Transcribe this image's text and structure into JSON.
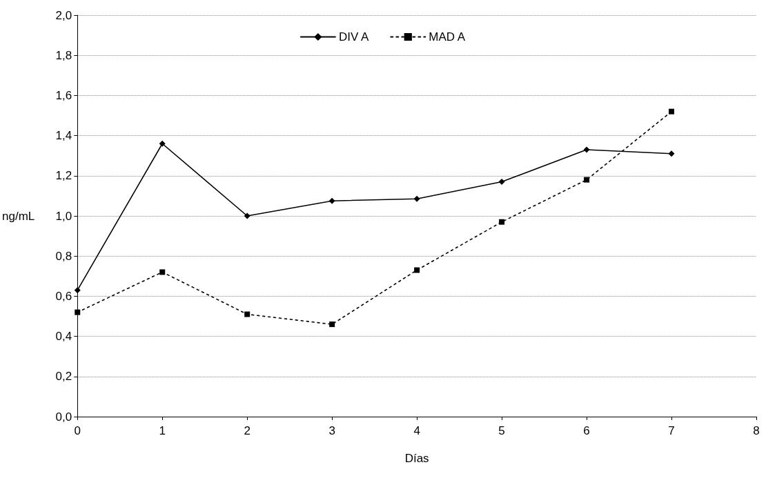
{
  "chart_data": {
    "type": "line",
    "xlabel": "Días",
    "ylabel": "ng/mL",
    "x": [
      0,
      1,
      2,
      3,
      4,
      5,
      6,
      7
    ],
    "series": [
      {
        "name": "DIV A",
        "color": "#000000",
        "marker": "diamond",
        "line_style": "solid",
        "values": [
          0.63,
          1.36,
          1.0,
          1.075,
          1.085,
          1.17,
          1.33,
          1.31
        ]
      },
      {
        "name": "MAD A",
        "color": "#000000",
        "marker": "square",
        "line_style": "dotted",
        "values": [
          0.52,
          0.72,
          0.51,
          0.46,
          0.73,
          0.97,
          1.18,
          1.52
        ]
      }
    ],
    "xlim": [
      0,
      8
    ],
    "xticks": [
      0,
      1,
      2,
      3,
      4,
      5,
      6,
      7,
      8
    ],
    "ylim": [
      0,
      2
    ],
    "yticks": [
      {
        "value": 0,
        "label": "0,0"
      },
      {
        "value": 0.2,
        "label": "0,2"
      },
      {
        "value": 0.4,
        "label": "0,4"
      },
      {
        "value": 0.6,
        "label": "0,6"
      },
      {
        "value": 0.8,
        "label": "0,8"
      },
      {
        "value": 1,
        "label": "1,0"
      },
      {
        "value": 1.2,
        "label": "1,2"
      },
      {
        "value": 1.4,
        "label": "1,4"
      },
      {
        "value": 1.6,
        "label": "1,6"
      },
      {
        "value": 1.8,
        "label": "1,8"
      },
      {
        "value": 2,
        "label": "2,0"
      }
    ],
    "grid": "y",
    "legend": "top"
  }
}
